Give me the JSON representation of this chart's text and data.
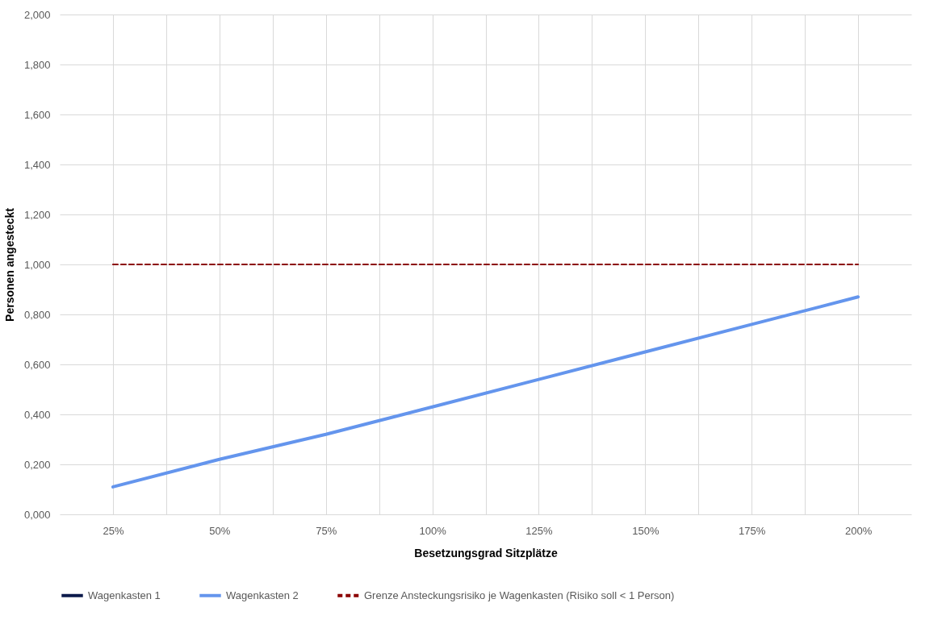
{
  "chart_data": {
    "type": "line",
    "xlabel": "Besetzungsgrad Sitzplätze",
    "ylabel": "Personen angesteckt",
    "x": [
      25,
      50,
      75,
      100,
      125,
      150,
      175,
      200
    ],
    "xlim": [
      12.5,
      212.5
    ],
    "xticks": [
      {
        "value": 25,
        "label": "25%"
      },
      {
        "value": 37.5,
        "label": null
      },
      {
        "value": 50,
        "label": "50%"
      },
      {
        "value": 62.5,
        "label": null
      },
      {
        "value": 75,
        "label": "75%"
      },
      {
        "value": 87.5,
        "label": null
      },
      {
        "value": 100,
        "label": "100%"
      },
      {
        "value": 112.5,
        "label": null
      },
      {
        "value": 125,
        "label": "125%"
      },
      {
        "value": 137.5,
        "label": null
      },
      {
        "value": 150,
        "label": "150%"
      },
      {
        "value": 162.5,
        "label": null
      },
      {
        "value": 175,
        "label": "175%"
      },
      {
        "value": 187.5,
        "label": null
      },
      {
        "value": 200,
        "label": "200%"
      }
    ],
    "ylim": [
      0,
      2
    ],
    "yticks": [
      {
        "value": 0,
        "label": "0,000"
      },
      {
        "value": 0.2,
        "label": "0,200"
      },
      {
        "value": 0.4,
        "label": "0,400"
      },
      {
        "value": 0.6,
        "label": "0,600"
      },
      {
        "value": 0.8,
        "label": "0,800"
      },
      {
        "value": 1,
        "label": "1,000"
      },
      {
        "value": 1.2,
        "label": "1,200"
      },
      {
        "value": 1.4,
        "label": "1,400"
      },
      {
        "value": 1.6,
        "label": "1,600"
      },
      {
        "value": 1.8,
        "label": "1,800"
      },
      {
        "value": 2,
        "label": "2,000"
      }
    ],
    "grid": true,
    "legend": "bottom",
    "series": [
      {
        "name": "Wagenkasten 1",
        "color": "#0c1a4b",
        "line_style": "solid",
        "values": [
          null,
          null,
          null,
          null,
          null,
          null,
          null,
          null
        ]
      },
      {
        "name": "Wagenkasten 2",
        "color": "#6495ed",
        "line_style": "solid",
        "values": [
          0.11,
          0.22,
          0.32,
          0.43,
          0.54,
          0.65,
          0.76,
          0.87
        ]
      },
      {
        "name": "Grenze Ansteckungsrisiko je Wagenkasten (Risiko soll < 1 Person)",
        "color": "#8b0000",
        "line_style": "dashed",
        "values": [
          1,
          1,
          1,
          1,
          1,
          1,
          1,
          1
        ]
      }
    ]
  }
}
